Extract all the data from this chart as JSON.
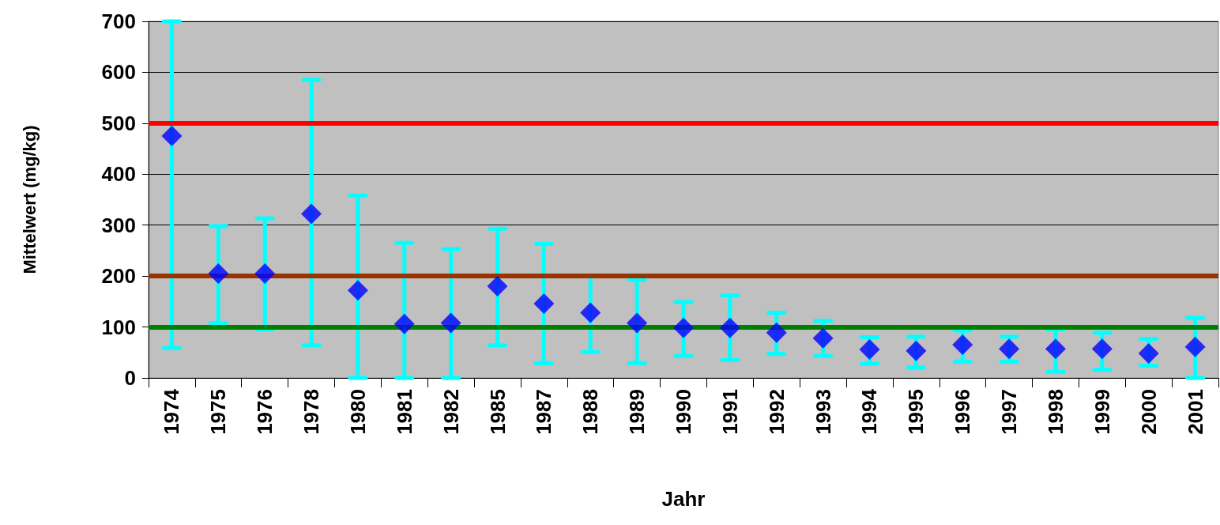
{
  "chart_data": {
    "type": "scatter",
    "xlabel": "Jahr",
    "ylabel": "Mittelwert (mg/kg)",
    "categories": [
      "1974",
      "1975",
      "1976",
      "1978",
      "1980",
      "1981",
      "1982",
      "1985",
      "1987",
      "1988",
      "1989",
      "1990",
      "1991",
      "1992",
      "1993",
      "1994",
      "1995",
      "1996",
      "1997",
      "1998",
      "1999",
      "2000",
      "2001"
    ],
    "series": [
      {
        "color": "#0000ff",
        "values": [
          475,
          205,
          205,
          322,
          172,
          106,
          108,
          180,
          146,
          128,
          108,
          98,
          98,
          89,
          78,
          56,
          53,
          65,
          57,
          57,
          57,
          48,
          61
        ],
        "errors": [
          [
            59,
            700
          ],
          [
            108,
            298
          ],
          [
            95,
            313
          ],
          [
            64,
            585
          ],
          [
            0,
            358
          ],
          [
            0,
            265
          ],
          [
            0,
            253
          ],
          [
            64,
            293
          ],
          [
            29,
            263
          ],
          [
            51,
            200
          ],
          [
            29,
            193
          ],
          [
            43,
            149
          ],
          [
            35,
            162
          ],
          [
            47,
            128
          ],
          [
            43,
            112
          ],
          [
            28,
            80
          ],
          [
            20,
            81
          ],
          [
            32,
            93
          ],
          [
            32,
            81
          ],
          [
            12,
            95
          ],
          [
            16,
            89
          ],
          [
            24,
            77
          ],
          [
            0,
            118
          ]
        ]
      }
    ],
    "ylim": [
      0,
      700
    ],
    "yticks": [
      0,
      100,
      200,
      300,
      400,
      500,
      600,
      700
    ],
    "grid": "y",
    "marker": "diamond",
    "ref_lines": [
      {
        "axis": "y",
        "value": 500,
        "color": "#ff0000"
      },
      {
        "axis": "y",
        "value": 200,
        "color": "#993300"
      },
      {
        "axis": "y",
        "value": 100,
        "color": "#008000"
      }
    ]
  }
}
